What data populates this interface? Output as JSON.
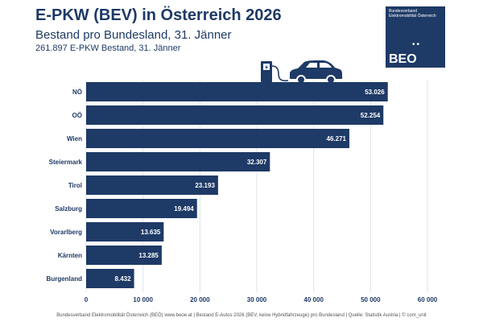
{
  "header": {
    "title": "E-PKW (BEV) in Österreich 2026",
    "subtitle": "Bestand pro Bundesland, 31. Jänner",
    "total_line": "261.897 E-PKW Bestand, 31. Jänner"
  },
  "logo": {
    "org": "Bundesverband Elektromobilität Österreich",
    "dots": "••",
    "abbr": "BEO",
    "url": "beoe.at"
  },
  "icons": [
    "charging-station-icon",
    "car-icon"
  ],
  "footer": "Bundesverband Elektromobilität Österreich (BEÖ) www.beoe.at | Bestand E-Autos 2026 (BEV, keine Hybridfahrzeuge) pro Bundesland | Quelle: Statistik Austria | © com_unit",
  "colors": {
    "bar": "#1e3a66",
    "text": "#1e3a66",
    "grid": "#dde3ea"
  },
  "chart_data": {
    "type": "bar",
    "orientation": "horizontal",
    "categories": [
      "NÖ",
      "OÖ",
      "Wien",
      "Steiermark",
      "Tirol",
      "Salzburg",
      "Vorarlberg",
      "Kärnten",
      "Burgenland"
    ],
    "values": [
      53026,
      52254,
      46271,
      32307,
      23193,
      19494,
      13635,
      13285,
      8432
    ],
    "value_labels": [
      "53.026",
      "52.254",
      "46.271",
      "32.307",
      "23.193",
      "19.494",
      "13.635",
      "13.285",
      "8.432"
    ],
    "xlim": [
      0,
      60000
    ],
    "xticks": [
      0,
      10000,
      20000,
      30000,
      40000,
      50000,
      60000
    ],
    "xtick_labels": [
      "0",
      "10 000",
      "20 000",
      "30 000",
      "40 000",
      "50 000",
      "60 000"
    ],
    "grid": true,
    "legend": "none"
  }
}
